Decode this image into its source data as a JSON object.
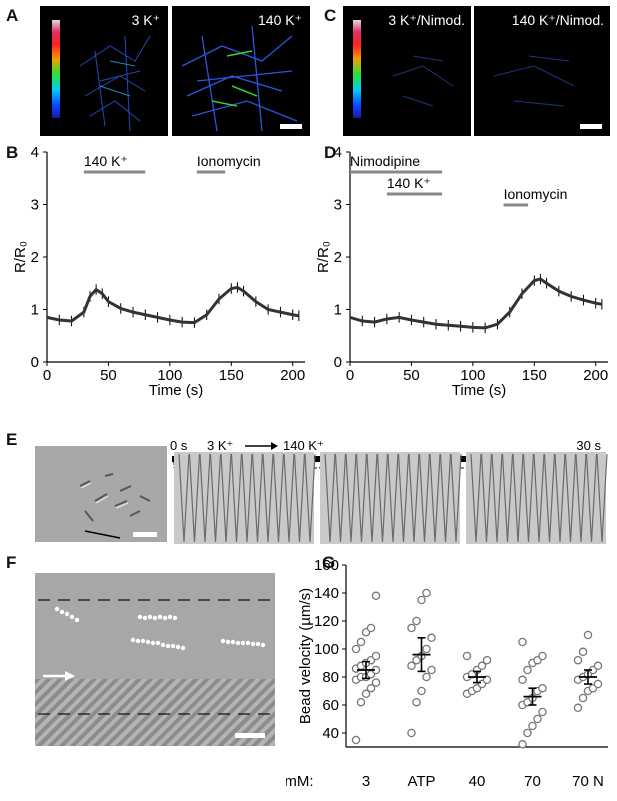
{
  "panels": {
    "A": "A",
    "B": "B",
    "C": "C",
    "D": "D",
    "E": "E",
    "F": "F",
    "G": "G"
  },
  "micrographs": {
    "a_left": "3 K⁺",
    "a_right": "140 K⁺",
    "c_left": "3 K⁺/Nimod.",
    "c_right": "140 K⁺/Nimod."
  },
  "panel_e": {
    "start": "0 s",
    "cond_from": "3 K⁺",
    "cond_to": "140 K⁺",
    "end": "30 s"
  },
  "chart_data": [
    {
      "panel": "B",
      "type": "line",
      "xlabel": "Time (s)",
      "ylabel": "R/R₀",
      "xlim": [
        0,
        210
      ],
      "ylim": [
        0,
        4
      ],
      "xticks": [
        0,
        50,
        100,
        150,
        200
      ],
      "yticks": [
        0,
        1,
        2,
        3,
        4
      ],
      "annotations": [
        {
          "text": "140 K⁺",
          "start": 30,
          "end": 80
        },
        {
          "text": "Ionomycin",
          "start": 122,
          "end": 145
        }
      ],
      "series": [
        {
          "x": [
            0,
            10,
            20,
            30,
            35,
            40,
            45,
            50,
            60,
            70,
            80,
            90,
            100,
            110,
            120,
            130,
            140,
            150,
            155,
            160,
            170,
            180,
            190,
            200,
            205
          ],
          "y": [
            0.85,
            0.8,
            0.78,
            0.95,
            1.25,
            1.38,
            1.3,
            1.15,
            1.02,
            0.95,
            0.9,
            0.85,
            0.8,
            0.76,
            0.75,
            0.9,
            1.2,
            1.4,
            1.42,
            1.35,
            1.15,
            1.0,
            0.95,
            0.9,
            0.88
          ]
        }
      ]
    },
    {
      "panel": "D",
      "type": "line",
      "xlabel": "Time (s)",
      "ylabel": "R/R₀",
      "xlim": [
        0,
        210
      ],
      "ylim": [
        0,
        4
      ],
      "xticks": [
        0,
        50,
        100,
        150,
        200
      ],
      "yticks": [
        0,
        1,
        2,
        3,
        4
      ],
      "annotations": [
        {
          "text": "Nimodipine",
          "start": 0,
          "end": 75
        },
        {
          "text": "140 K⁺",
          "start": 30,
          "end": 75
        },
        {
          "text": "Ionomycin",
          "start": 125,
          "end": 145
        }
      ],
      "series": [
        {
          "x": [
            0,
            10,
            20,
            30,
            40,
            50,
            60,
            70,
            80,
            90,
            100,
            110,
            120,
            130,
            140,
            150,
            155,
            160,
            170,
            180,
            190,
            200,
            205
          ],
          "y": [
            0.85,
            0.78,
            0.76,
            0.82,
            0.85,
            0.8,
            0.76,
            0.72,
            0.7,
            0.68,
            0.66,
            0.65,
            0.72,
            0.95,
            1.3,
            1.55,
            1.58,
            1.5,
            1.35,
            1.25,
            1.18,
            1.12,
            1.1
          ]
        }
      ]
    },
    {
      "panel": "G",
      "type": "scatter",
      "ylabel": "Bead velocity (µm/s)",
      "xlabel_prefix": "[K⁺] mM:",
      "categories": [
        "3",
        "ATP",
        "40",
        "70",
        "70 N"
      ],
      "ylim": [
        30,
        160
      ],
      "yticks": [
        40,
        60,
        80,
        100,
        120,
        140,
        160
      ],
      "points": [
        [
          35,
          62,
          68,
          72,
          76,
          78,
          80,
          80,
          82,
          85,
          86,
          88,
          90,
          92,
          95,
          100,
          105,
          112,
          115,
          138
        ],
        [
          40,
          62,
          70,
          80,
          85,
          88,
          92,
          95,
          100,
          108,
          115,
          120,
          135,
          140
        ],
        [
          68,
          70,
          72,
          75,
          78,
          80,
          82,
          85,
          88,
          92,
          95
        ],
        [
          32,
          40,
          45,
          50,
          55,
          60,
          62,
          65,
          70,
          72,
          78,
          85,
          90,
          92,
          95,
          105
        ],
        [
          58,
          65,
          70,
          72,
          75,
          78,
          80,
          82,
          85,
          88,
          92,
          98,
          110
        ]
      ],
      "mean": [
        85,
        96,
        80,
        66,
        80
      ],
      "sem": [
        6,
        12,
        4,
        6,
        5
      ]
    }
  ]
}
